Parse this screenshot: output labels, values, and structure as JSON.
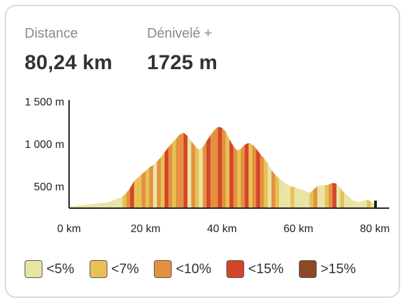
{
  "stats": {
    "distance": {
      "label": "Distance",
      "value": "80,24 km"
    },
    "elevation": {
      "label": "Dénivelé +",
      "value": "1725 m"
    }
  },
  "legend": [
    {
      "label": "<5%",
      "color": "#e9e3a6"
    },
    {
      "label": "<7%",
      "color": "#e8c155"
    },
    {
      "label": "<10%",
      "color": "#e39140"
    },
    {
      "label": "<15%",
      "color": "#d4442a"
    },
    {
      "label": ">15%",
      "color": "#8a4a24"
    }
  ],
  "chart_data": {
    "type": "area",
    "xlabel": "",
    "ylabel": "",
    "xlim": [
      0,
      80.24
    ],
    "ylim": [
      250,
      1500
    ],
    "x_ticks": [
      "0 km",
      "20 km",
      "40 km",
      "60 km",
      "80 km"
    ],
    "y_ticks": [
      "500 m",
      "1 000 m",
      "1 500 m"
    ],
    "x": [
      0,
      4,
      8,
      10,
      12,
      14,
      15,
      16,
      17,
      18,
      19,
      20,
      21,
      22,
      23,
      24,
      25,
      26,
      27,
      28,
      29,
      30,
      31,
      32,
      33,
      34,
      35,
      36,
      37,
      38,
      39,
      40,
      41,
      42,
      43,
      44,
      45,
      46,
      47,
      48,
      49,
      50,
      51,
      52,
      53,
      54,
      55,
      56,
      57,
      58,
      59,
      60,
      61,
      62,
      63,
      64,
      65,
      66,
      67,
      68,
      69,
      70,
      71,
      72,
      73,
      74,
      75,
      76,
      77,
      78,
      79,
      80,
      80.24
    ],
    "elevation": [
      260,
      280,
      300,
      310,
      340,
      380,
      420,
      480,
      560,
      600,
      640,
      680,
      720,
      750,
      790,
      840,
      900,
      960,
      1010,
      1060,
      1110,
      1130,
      1090,
      1030,
      970,
      930,
      960,
      1030,
      1100,
      1160,
      1200,
      1190,
      1140,
      1050,
      970,
      920,
      940,
      990,
      1010,
      990,
      940,
      880,
      830,
      770,
      690,
      630,
      590,
      560,
      520,
      500,
      490,
      470,
      460,
      440,
      420,
      460,
      500,
      510,
      510,
      520,
      540,
      530,
      480,
      420,
      390,
      340,
      320,
      310,
      330,
      340,
      320,
      280,
      270
    ],
    "gradient_class": [
      0,
      0,
      0,
      0,
      0,
      1,
      2,
      3,
      1,
      1,
      2,
      1,
      2,
      0,
      2,
      1,
      3,
      2,
      1,
      2,
      2,
      3,
      0,
      2,
      1,
      0,
      2,
      3,
      2,
      2,
      3,
      2,
      1,
      3,
      2,
      1,
      2,
      3,
      1,
      2,
      3,
      2,
      1,
      0,
      2,
      1,
      0,
      0,
      0,
      1,
      0,
      0,
      0,
      0,
      1,
      2,
      0,
      0,
      1,
      2,
      3,
      0,
      1,
      0,
      0,
      0,
      0,
      0,
      0,
      1,
      0,
      0,
      4
    ]
  }
}
